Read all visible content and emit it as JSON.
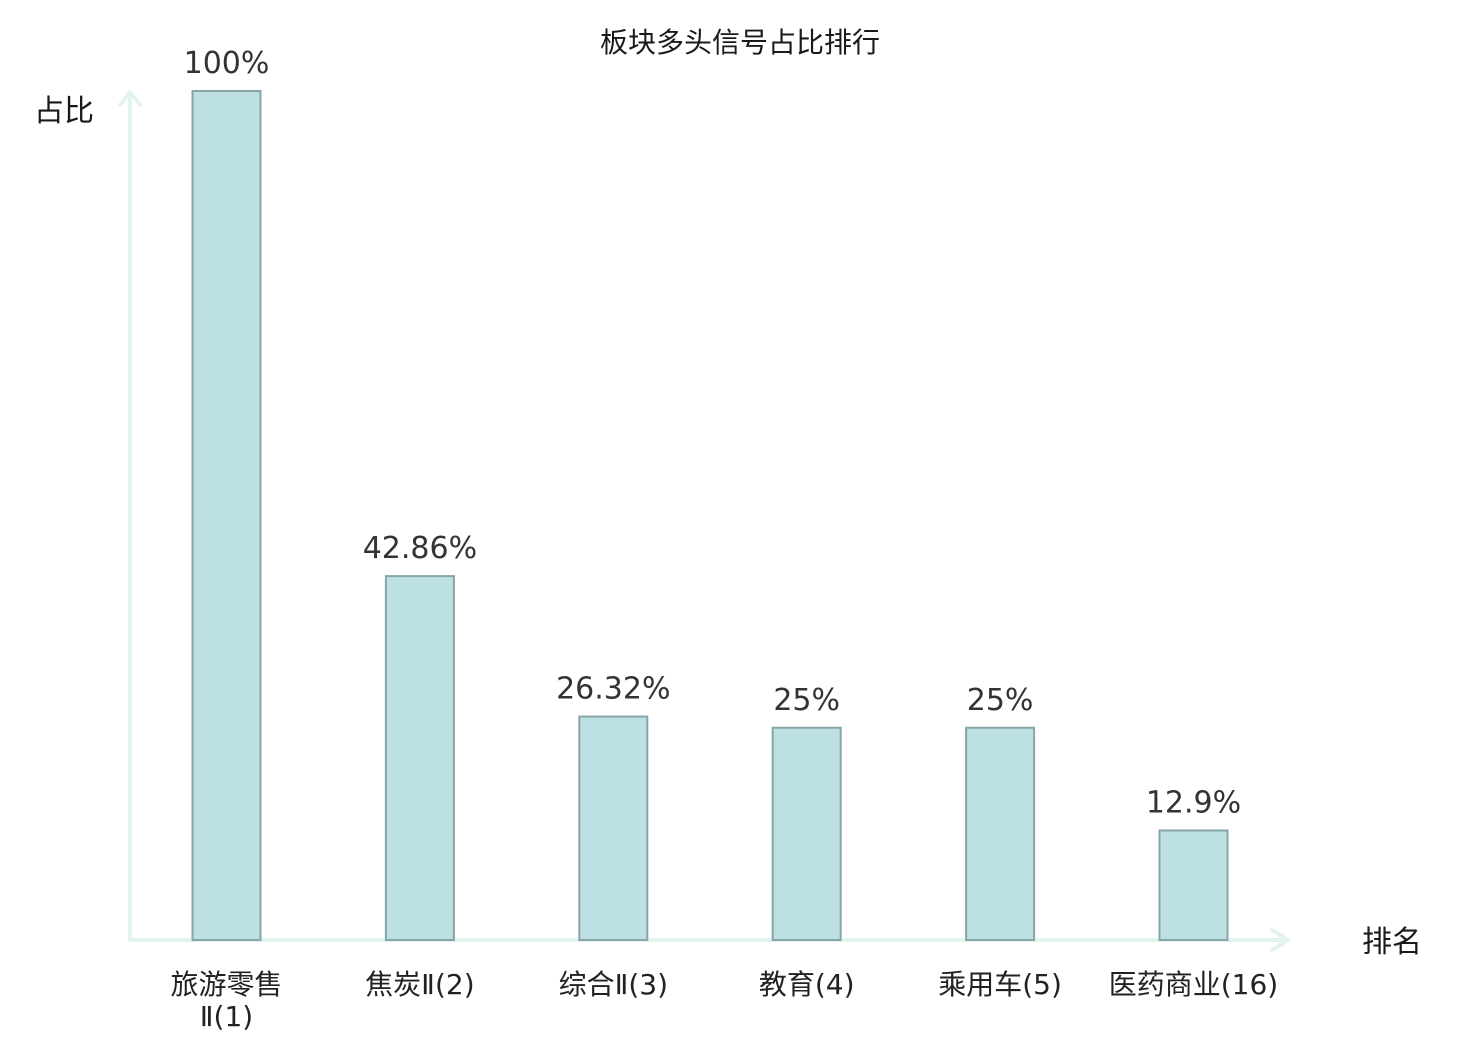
{
  "chart_data": {
    "type": "bar",
    "title": "板块多头信号占比排行",
    "xlabel": "排名",
    "ylabel": "占比",
    "categories": [
      [
        "旅游零售",
        "Ⅱ(1)"
      ],
      [
        "焦炭Ⅱ(2)"
      ],
      [
        "综合Ⅱ(3)"
      ],
      [
        "教育(4)"
      ],
      [
        "乘用车(5)"
      ],
      [
        "医药商业(16)"
      ]
    ],
    "values": [
      100,
      42.86,
      26.32,
      25,
      25,
      12.9
    ],
    "value_labels": [
      "100%",
      "42.86%",
      "26.32%",
      "25%",
      "25%",
      "12.9%"
    ],
    "ylim": [
      0,
      100
    ],
    "grid": false,
    "colors": {
      "bar_fill": "#bde0e3",
      "bar_stroke": "#86a5a8",
      "axis": "#e2f3f1",
      "highlight": "#e8212b",
      "text": "#222222"
    },
    "highlight_index": 5
  }
}
